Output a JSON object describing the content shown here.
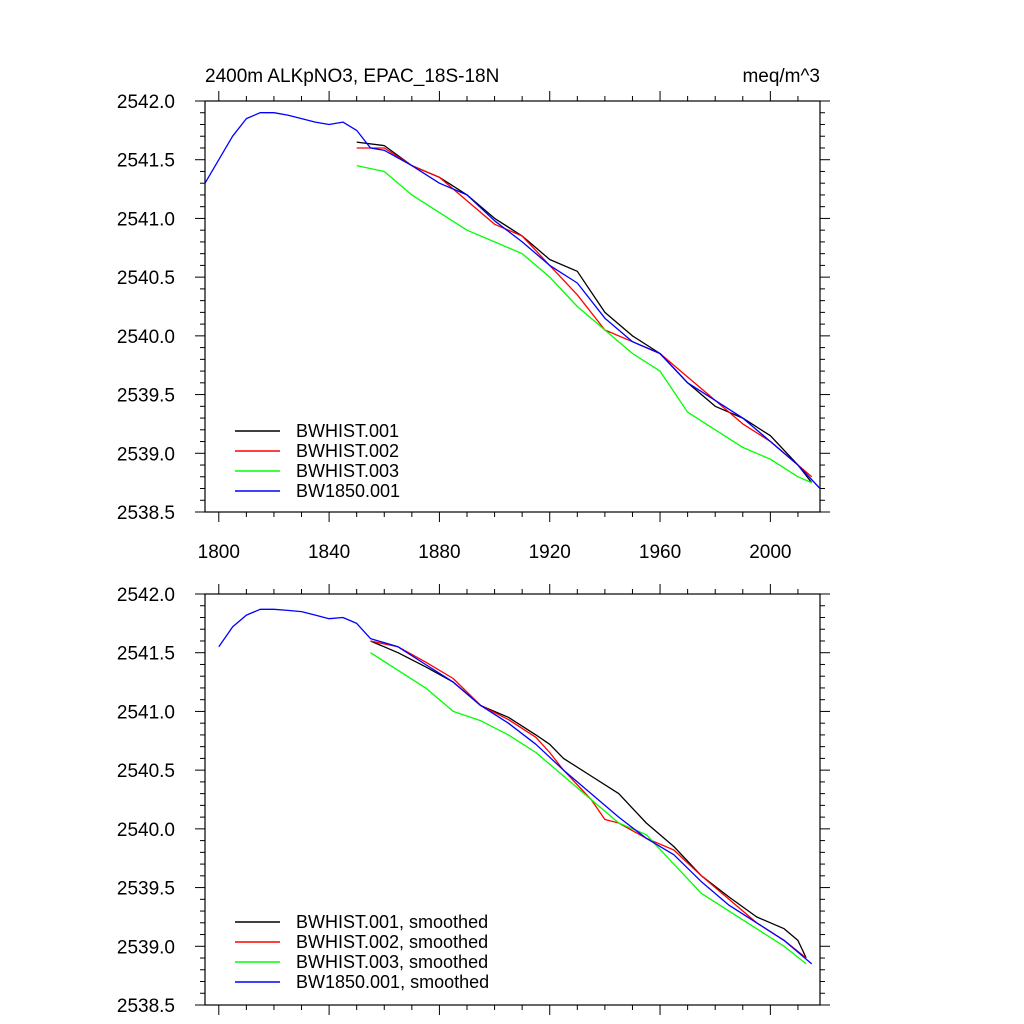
{
  "chart_data": [
    {
      "type": "line",
      "title": "2400m ALKpNO3, EPAC_18S-18N",
      "title_right": "meq/m^3",
      "xlim": [
        1795,
        2018
      ],
      "ylim": [
        2538.5,
        2542.0
      ],
      "x_ticks": [
        1800,
        1840,
        1880,
        1920,
        1960,
        2000
      ],
      "x_tick_labels": [
        "1800",
        "1840",
        "1880",
        "1920",
        "1960",
        "2000"
      ],
      "y_ticks": [
        2538.5,
        2539.0,
        2539.5,
        2540.0,
        2540.5,
        2541.0,
        2541.5,
        2542.0
      ],
      "y_tick_labels": [
        "2538.5",
        "2539.0",
        "2539.5",
        "2540.0",
        "2540.5",
        "2541.0",
        "2541.5",
        "2542.0"
      ],
      "legend_position": "bottom-left",
      "series": [
        {
          "name": "BWHIST.001",
          "color": "#000000",
          "points": [
            [
              1850,
              2541.65
            ],
            [
              1860,
              2541.62
            ],
            [
              1870,
              2541.45
            ],
            [
              1880,
              2541.35
            ],
            [
              1890,
              2541.2
            ],
            [
              1900,
              2541.0
            ],
            [
              1910,
              2540.85
            ],
            [
              1920,
              2540.65
            ],
            [
              1930,
              2540.55
            ],
            [
              1940,
              2540.2
            ],
            [
              1950,
              2540.0
            ],
            [
              1960,
              2539.85
            ],
            [
              1970,
              2539.6
            ],
            [
              1980,
              2539.4
            ],
            [
              1990,
              2539.3
            ],
            [
              2000,
              2539.15
            ],
            [
              2010,
              2538.9
            ],
            [
              2015,
              2538.75
            ]
          ]
        },
        {
          "name": "BWHIST.002",
          "color": "#ff0000",
          "points": [
            [
              1850,
              2541.6
            ],
            [
              1860,
              2541.6
            ],
            [
              1870,
              2541.45
            ],
            [
              1880,
              2541.35
            ],
            [
              1890,
              2541.15
            ],
            [
              1900,
              2540.95
            ],
            [
              1910,
              2540.85
            ],
            [
              1920,
              2540.6
            ],
            [
              1930,
              2540.35
            ],
            [
              1940,
              2540.05
            ],
            [
              1950,
              2539.95
            ],
            [
              1960,
              2539.85
            ],
            [
              1970,
              2539.65
            ],
            [
              1980,
              2539.45
            ],
            [
              1990,
              2539.25
            ],
            [
              2000,
              2539.1
            ],
            [
              2010,
              2538.9
            ],
            [
              2015,
              2538.8
            ]
          ]
        },
        {
          "name": "BWHIST.003",
          "color": "#00ff00",
          "points": [
            [
              1850,
              2541.45
            ],
            [
              1860,
              2541.4
            ],
            [
              1870,
              2541.2
            ],
            [
              1880,
              2541.05
            ],
            [
              1890,
              2540.9
            ],
            [
              1900,
              2540.8
            ],
            [
              1910,
              2540.7
            ],
            [
              1920,
              2540.5
            ],
            [
              1930,
              2540.25
            ],
            [
              1940,
              2540.05
            ],
            [
              1950,
              2539.85
            ],
            [
              1960,
              2539.7
            ],
            [
              1970,
              2539.35
            ],
            [
              1980,
              2539.2
            ],
            [
              1990,
              2539.05
            ],
            [
              2000,
              2538.95
            ],
            [
              2010,
              2538.8
            ],
            [
              2015,
              2538.75
            ]
          ]
        },
        {
          "name": "BW1850.001",
          "color": "#0000ff",
          "points": [
            [
              1795,
              2541.3
            ],
            [
              1800,
              2541.5
            ],
            [
              1805,
              2541.7
            ],
            [
              1810,
              2541.85
            ],
            [
              1815,
              2541.9
            ],
            [
              1820,
              2541.9
            ],
            [
              1825,
              2541.88
            ],
            [
              1830,
              2541.85
            ],
            [
              1835,
              2541.82
            ],
            [
              1840,
              2541.8
            ],
            [
              1845,
              2541.82
            ],
            [
              1850,
              2541.75
            ],
            [
              1855,
              2541.6
            ],
            [
              1860,
              2541.58
            ],
            [
              1870,
              2541.45
            ],
            [
              1880,
              2541.3
            ],
            [
              1890,
              2541.2
            ],
            [
              1900,
              2540.98
            ],
            [
              1910,
              2540.8
            ],
            [
              1920,
              2540.6
            ],
            [
              1930,
              2540.45
            ],
            [
              1940,
              2540.15
            ],
            [
              1950,
              2539.95
            ],
            [
              1960,
              2539.85
            ],
            [
              1970,
              2539.6
            ],
            [
              1980,
              2539.45
            ],
            [
              1990,
              2539.3
            ],
            [
              2000,
              2539.1
            ],
            [
              2010,
              2538.9
            ],
            [
              2018,
              2538.7
            ]
          ]
        }
      ]
    },
    {
      "type": "line",
      "xlim": [
        1795,
        2018
      ],
      "ylim": [
        2538.5,
        2542.0
      ],
      "x_ticks": [
        1800,
        1840,
        1880,
        1920,
        1960,
        2000
      ],
      "y_ticks": [
        2538.5,
        2539.0,
        2539.5,
        2540.0,
        2540.5,
        2541.0,
        2541.5,
        2542.0
      ],
      "y_tick_labels": [
        "2538.5",
        "2539.0",
        "2539.5",
        "2540.0",
        "2540.5",
        "2541.0",
        "2541.5",
        "2542.0"
      ],
      "legend_position": "bottom-left",
      "series": [
        {
          "name": "BWHIST.001, smoothed",
          "color": "#000000",
          "points": [
            [
              1855,
              2541.6
            ],
            [
              1865,
              2541.5
            ],
            [
              1875,
              2541.38
            ],
            [
              1885,
              2541.25
            ],
            [
              1895,
              2541.05
            ],
            [
              1905,
              2540.95
            ],
            [
              1915,
              2540.8
            ],
            [
              1920,
              2540.72
            ],
            [
              1925,
              2540.6
            ],
            [
              1935,
              2540.45
            ],
            [
              1945,
              2540.3
            ],
            [
              1955,
              2540.05
            ],
            [
              1965,
              2539.85
            ],
            [
              1975,
              2539.6
            ],
            [
              1985,
              2539.42
            ],
            [
              1995,
              2539.25
            ],
            [
              2005,
              2539.15
            ],
            [
              2010,
              2539.05
            ],
            [
              2013,
              2538.9
            ]
          ]
        },
        {
          "name": "BWHIST.002, smoothed",
          "color": "#ff0000",
          "points": [
            [
              1855,
              2541.6
            ],
            [
              1865,
              2541.55
            ],
            [
              1875,
              2541.42
            ],
            [
              1885,
              2541.28
            ],
            [
              1895,
              2541.05
            ],
            [
              1905,
              2540.93
            ],
            [
              1915,
              2540.78
            ],
            [
              1920,
              2540.65
            ],
            [
              1925,
              2540.5
            ],
            [
              1935,
              2540.25
            ],
            [
              1940,
              2540.08
            ],
            [
              1945,
              2540.05
            ],
            [
              1955,
              2539.92
            ],
            [
              1965,
              2539.82
            ],
            [
              1975,
              2539.6
            ],
            [
              1985,
              2539.4
            ],
            [
              1995,
              2539.2
            ],
            [
              2005,
              2539.05
            ],
            [
              2013,
              2538.9
            ]
          ]
        },
        {
          "name": "BWHIST.003, smoothed",
          "color": "#00ff00",
          "points": [
            [
              1855,
              2541.5
            ],
            [
              1865,
              2541.35
            ],
            [
              1875,
              2541.2
            ],
            [
              1885,
              2541.0
            ],
            [
              1895,
              2540.92
            ],
            [
              1905,
              2540.8
            ],
            [
              1915,
              2540.65
            ],
            [
              1925,
              2540.45
            ],
            [
              1935,
              2540.25
            ],
            [
              1945,
              2540.05
            ],
            [
              1955,
              2539.95
            ],
            [
              1965,
              2539.7
            ],
            [
              1975,
              2539.45
            ],
            [
              1985,
              2539.3
            ],
            [
              1995,
              2539.15
            ],
            [
              2005,
              2539.0
            ],
            [
              2013,
              2538.85
            ]
          ]
        },
        {
          "name": "BW1850.001, smoothed",
          "color": "#0000ff",
          "points": [
            [
              1800,
              2541.55
            ],
            [
              1805,
              2541.72
            ],
            [
              1810,
              2541.82
            ],
            [
              1815,
              2541.87
            ],
            [
              1820,
              2541.87
            ],
            [
              1825,
              2541.86
            ],
            [
              1830,
              2541.85
            ],
            [
              1835,
              2541.82
            ],
            [
              1840,
              2541.79
            ],
            [
              1845,
              2541.8
            ],
            [
              1850,
              2541.75
            ],
            [
              1855,
              2541.62
            ],
            [
              1865,
              2541.55
            ],
            [
              1875,
              2541.4
            ],
            [
              1885,
              2541.25
            ],
            [
              1895,
              2541.05
            ],
            [
              1905,
              2540.9
            ],
            [
              1915,
              2540.72
            ],
            [
              1925,
              2540.5
            ],
            [
              1935,
              2540.3
            ],
            [
              1945,
              2540.1
            ],
            [
              1955,
              2539.92
            ],
            [
              1965,
              2539.78
            ],
            [
              1975,
              2539.55
            ],
            [
              1985,
              2539.35
            ],
            [
              1995,
              2539.2
            ],
            [
              2005,
              2539.05
            ],
            [
              2015,
              2538.85
            ]
          ]
        }
      ]
    }
  ]
}
